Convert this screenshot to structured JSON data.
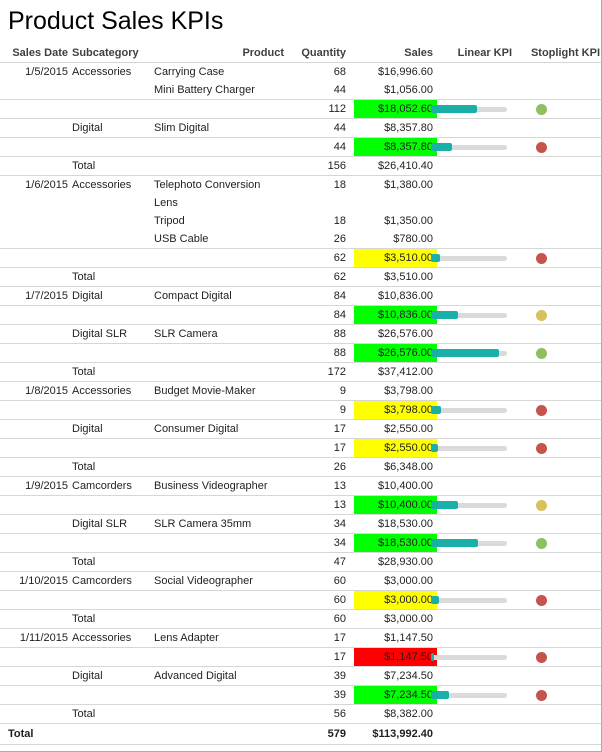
{
  "title": "Product Sales KPIs",
  "columns": [
    "Sales Date",
    "Subcategory",
    "Product",
    "Quantity",
    "Sales",
    "Linear KPI",
    "Stoplight KPI"
  ],
  "colors": {
    "cellGreen": "#00FF00",
    "cellYellow": "#FFFF00",
    "cellRed": "#FF0000",
    "gaugeFill": "#1AB0A8",
    "gaugeTrack": "#DADADA",
    "dotGreen": "#8DC05E",
    "dotYellow": "#D8C05A",
    "dotRed": "#C4544C"
  },
  "rows": [
    {
      "type": "detail",
      "date": "1/5/2015",
      "subcategory": "Accessories",
      "product": "Carrying Case",
      "quantity": "68",
      "sales": "$16,996.60"
    },
    {
      "type": "detail",
      "product": "Mini Battery Charger",
      "quantity": "44",
      "sales": "$1,056.00"
    },
    {
      "type": "subtotal",
      "quantity": "112",
      "sales": "$18,052.60",
      "salesBg": "cellGreen",
      "gauge": 60,
      "dot": "dotGreen"
    },
    {
      "type": "detail",
      "subcategory": "Digital",
      "product": "Slim Digital",
      "quantity": "44",
      "sales": "$8,357.80"
    },
    {
      "type": "subtotal",
      "quantity": "44",
      "sales": "$8,357.80",
      "salesBg": "cellGreen",
      "gauge": 28,
      "dot": "dotRed"
    },
    {
      "type": "total",
      "subcategory": "Total",
      "quantity": "156",
      "sales": "$26,410.40"
    },
    {
      "type": "detail",
      "date": "1/6/2015",
      "subcategory": "Accessories",
      "product": "Telephoto Conversion\nLens",
      "quantity": "18",
      "sales": "$1,380.00"
    },
    {
      "type": "detail",
      "product": "Tripod",
      "quantity": "18",
      "sales": "$1,350.00"
    },
    {
      "type": "detail",
      "product": "USB Cable",
      "quantity": "26",
      "sales": "$780.00"
    },
    {
      "type": "subtotal",
      "quantity": "62",
      "sales": "$3,510.00",
      "salesBg": "cellYellow",
      "gauge": 12,
      "dot": "dotRed"
    },
    {
      "type": "total",
      "subcategory": "Total",
      "quantity": "62",
      "sales": "$3,510.00"
    },
    {
      "type": "detail",
      "date": "1/7/2015",
      "subcategory": "Digital",
      "product": "Compact Digital",
      "quantity": "84",
      "sales": "$10,836.00"
    },
    {
      "type": "subtotal",
      "quantity": "84",
      "sales": "$10,836.00",
      "salesBg": "cellGreen",
      "gauge": 36,
      "dot": "dotYellow"
    },
    {
      "type": "detail",
      "subcategory": "Digital SLR",
      "product": "SLR Camera",
      "quantity": "88",
      "sales": "$26,576.00"
    },
    {
      "type": "subtotal",
      "quantity": "88",
      "sales": "$26,576.00",
      "salesBg": "cellGreen",
      "gauge": 89,
      "dot": "dotGreen"
    },
    {
      "type": "total",
      "subcategory": "Total",
      "quantity": "172",
      "sales": "$37,412.00"
    },
    {
      "type": "detail",
      "date": "1/8/2015",
      "subcategory": "Accessories",
      "product": "Budget Movie-Maker",
      "quantity": "9",
      "sales": "$3,798.00"
    },
    {
      "type": "subtotal",
      "quantity": "9",
      "sales": "$3,798.00",
      "salesBg": "cellYellow",
      "gauge": 13,
      "dot": "dotRed"
    },
    {
      "type": "detail",
      "subcategory": "Digital",
      "product": "Consumer Digital",
      "quantity": "17",
      "sales": "$2,550.00"
    },
    {
      "type": "subtotal",
      "quantity": "17",
      "sales": "$2,550.00",
      "salesBg": "cellYellow",
      "gauge": 9,
      "dot": "dotRed"
    },
    {
      "type": "total",
      "subcategory": "Total",
      "quantity": "26",
      "sales": "$6,348.00"
    },
    {
      "type": "detail",
      "date": "1/9/2015",
      "subcategory": "Camcorders",
      "product": "Business Videographer",
      "quantity": "13",
      "sales": "$10,400.00"
    },
    {
      "type": "subtotal",
      "quantity": "13",
      "sales": "$10,400.00",
      "salesBg": "cellGreen",
      "gauge": 35,
      "dot": "dotYellow"
    },
    {
      "type": "detail",
      "subcategory": "Digital SLR",
      "product": "SLR Camera 35mm",
      "quantity": "34",
      "sales": "$18,530.00"
    },
    {
      "type": "subtotal",
      "quantity": "34",
      "sales": "$18,530.00",
      "salesBg": "cellGreen",
      "gauge": 62,
      "dot": "dotGreen"
    },
    {
      "type": "total",
      "subcategory": "Total",
      "quantity": "47",
      "sales": "$28,930.00"
    },
    {
      "type": "detail",
      "date": "1/10/2015",
      "subcategory": "Camcorders",
      "product": "Social Videographer",
      "quantity": "60",
      "sales": "$3,000.00"
    },
    {
      "type": "subtotal",
      "quantity": "60",
      "sales": "$3,000.00",
      "salesBg": "cellYellow",
      "gauge": 10,
      "dot": "dotRed"
    },
    {
      "type": "total",
      "subcategory": "Total",
      "quantity": "60",
      "sales": "$3,000.00"
    },
    {
      "type": "detail",
      "date": "1/11/2015",
      "subcategory": "Accessories",
      "product": "Lens Adapter",
      "quantity": "17",
      "sales": "$1,147.50"
    },
    {
      "type": "subtotal",
      "quantity": "17",
      "sales": "$1,147.50",
      "salesBg": "cellRed",
      "gauge": 4,
      "dot": "dotRed"
    },
    {
      "type": "detail",
      "subcategory": "Digital",
      "product": "Advanced Digital",
      "quantity": "39",
      "sales": "$7,234.50"
    },
    {
      "type": "subtotal",
      "quantity": "39",
      "sales": "$7,234.50",
      "salesBg": "cellGreen",
      "gauge": 24,
      "dot": "dotRed"
    },
    {
      "type": "total",
      "subcategory": "Total",
      "quantity": "56",
      "sales": "$8,382.00"
    }
  ],
  "grand_total": {
    "label": "Total",
    "quantity": "579",
    "sales": "$113,992.40"
  }
}
